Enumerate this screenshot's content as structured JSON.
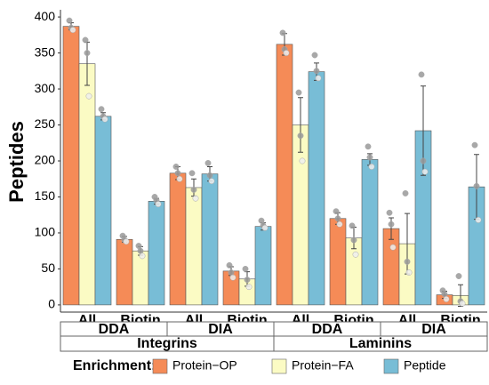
{
  "chart_data": {
    "type": "bar",
    "y_label": "Peptides",
    "categories": [
      "All",
      "Biotin",
      "All",
      "Biotin",
      "All",
      "Biotin",
      "All",
      "Biotin"
    ],
    "facets": [
      "DDA",
      "DIA",
      "DDA",
      "DIA"
    ],
    "panels": [
      "Integrins",
      "Laminins"
    ],
    "legend_title": "Enrichment:",
    "series": [
      {
        "name": "Protein−OP",
        "color": "#f58b57",
        "values": [
          387,
          91,
          183,
          47,
          362,
          120,
          106,
          14
        ],
        "errors": [
          5,
          4,
          9,
          6,
          15,
          8,
          15,
          5
        ],
        "points": [
          [
            395,
            385,
            382
          ],
          [
            96,
            90,
            88
          ],
          [
            192,
            183,
            175
          ],
          [
            55,
            45,
            38
          ],
          [
            378,
            355,
            350
          ],
          [
            130,
            120,
            112
          ],
          [
            128,
            112,
            80
          ],
          [
            20,
            15,
            8
          ]
        ]
      },
      {
        "name": "Protein−FA",
        "color": "#fbfbc4",
        "values": [
          335,
          75,
          163,
          36,
          250,
          93,
          85,
          13
        ],
        "errors": [
          30,
          6,
          12,
          10,
          38,
          15,
          42,
          15
        ],
        "points": [
          [
            368,
            350,
            290
          ],
          [
            82,
            75,
            68
          ],
          [
            183,
            160,
            148
          ],
          [
            50,
            35,
            25
          ],
          [
            295,
            235,
            200
          ],
          [
            110,
            90,
            70
          ],
          [
            155,
            60,
            45
          ],
          [
            40,
            5,
            2
          ]
        ]
      },
      {
        "name": "Peptide",
        "color": "#78bdd6",
        "values": [
          262,
          144,
          182,
          109,
          324,
          202,
          242,
          164
        ],
        "errors": [
          5,
          4,
          10,
          5,
          12,
          8,
          62,
          45
        ],
        "points": [
          [
            272,
            262,
            258
          ],
          [
            150,
            145,
            140
          ],
          [
            197,
            180,
            172
          ],
          [
            117,
            110,
            107
          ],
          [
            347,
            325,
            315
          ],
          [
            220,
            205,
            192
          ],
          [
            320,
            200,
            185
          ],
          [
            222,
            165,
            118
          ]
        ]
      }
    ],
    "ylim": [
      -10,
      410
    ],
    "yticks": [
      0,
      50,
      100,
      150,
      200,
      250,
      300,
      350,
      400
    ]
  }
}
